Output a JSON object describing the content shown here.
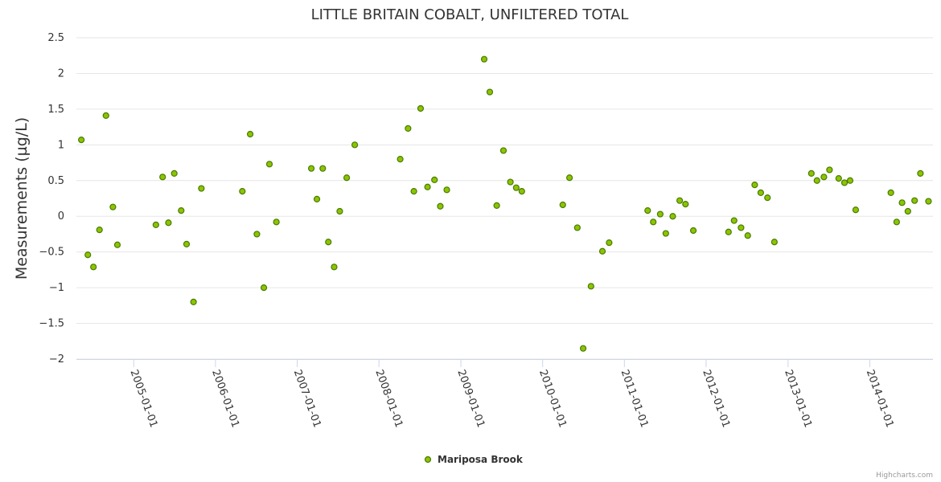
{
  "credits": "Highcharts.com",
  "chart_data": {
    "type": "scatter",
    "title": "LITTLE BRITAIN COBALT, UNFILTERED TOTAL",
    "ylabel": "Measurements (µg/L)",
    "xlabel": "",
    "ylim": [
      -2,
      2.5
    ],
    "yticks": [
      "2.5",
      "2",
      "1.5",
      "1",
      "0.5",
      "0",
      "−0.5",
      "−1",
      "−1.5",
      "−2"
    ],
    "xlim": [
      "2004-04-20",
      "2014-10-10"
    ],
    "xticks": [
      "2005-01-01",
      "2006-01-01",
      "2007-01-01",
      "2008-01-01",
      "2009-01-01",
      "2010-01-01",
      "2011-01-01",
      "2012-01-01",
      "2013-01-01",
      "2014-01-01"
    ],
    "grid": true,
    "legend_position": "bottom-center",
    "colors": {
      "marker_fill": "#8bc500",
      "marker_stroke": "#4a7a00",
      "grid": "#e6e6e6",
      "axis": "#ccd6eb"
    },
    "series": [
      {
        "name": "Mariposa Brook",
        "points": [
          {
            "x": "2004-05-12",
            "y": 1.07
          },
          {
            "x": "2004-06-10",
            "y": -0.54
          },
          {
            "x": "2004-07-05",
            "y": -0.71
          },
          {
            "x": "2004-08-01",
            "y": -0.19
          },
          {
            "x": "2004-08-30",
            "y": 1.41
          },
          {
            "x": "2004-09-30",
            "y": 0.13
          },
          {
            "x": "2004-10-20",
            "y": -0.4
          },
          {
            "x": "2005-04-10",
            "y": -0.12
          },
          {
            "x": "2005-05-10",
            "y": 0.55
          },
          {
            "x": "2005-06-05",
            "y": -0.09
          },
          {
            "x": "2005-07-01",
            "y": 0.6
          },
          {
            "x": "2005-08-01",
            "y": 0.08
          },
          {
            "x": "2005-08-25",
            "y": -0.39
          },
          {
            "x": "2005-09-25",
            "y": -1.2
          },
          {
            "x": "2005-10-30",
            "y": 0.39
          },
          {
            "x": "2006-05-01",
            "y": 0.35
          },
          {
            "x": "2006-06-05",
            "y": 1.15
          },
          {
            "x": "2006-07-05",
            "y": -0.25
          },
          {
            "x": "2006-08-05",
            "y": -1.0
          },
          {
            "x": "2006-08-30",
            "y": 0.73
          },
          {
            "x": "2006-09-30",
            "y": -0.08
          },
          {
            "x": "2007-03-05",
            "y": 0.67
          },
          {
            "x": "2007-03-30",
            "y": 0.24
          },
          {
            "x": "2007-04-25",
            "y": 0.67
          },
          {
            "x": "2007-05-20",
            "y": -0.36
          },
          {
            "x": "2007-06-15",
            "y": -0.71
          },
          {
            "x": "2007-07-10",
            "y": 0.07
          },
          {
            "x": "2007-08-10",
            "y": 0.54
          },
          {
            "x": "2007-09-15",
            "y": 1.0
          },
          {
            "x": "2008-04-05",
            "y": 0.8
          },
          {
            "x": "2008-05-10",
            "y": 1.23
          },
          {
            "x": "2008-06-05",
            "y": 0.35
          },
          {
            "x": "2008-07-05",
            "y": 1.51
          },
          {
            "x": "2008-08-05",
            "y": 0.41
          },
          {
            "x": "2008-09-05",
            "y": 0.51
          },
          {
            "x": "2008-10-01",
            "y": 0.14
          },
          {
            "x": "2008-10-30",
            "y": 0.37
          },
          {
            "x": "2009-04-15",
            "y": 2.2
          },
          {
            "x": "2009-05-10",
            "y": 1.74
          },
          {
            "x": "2009-06-10",
            "y": 0.15
          },
          {
            "x": "2009-07-10",
            "y": 0.92
          },
          {
            "x": "2009-08-10",
            "y": 0.48
          },
          {
            "x": "2009-09-05",
            "y": 0.4
          },
          {
            "x": "2009-09-30",
            "y": 0.35
          },
          {
            "x": "2010-04-01",
            "y": 0.16
          },
          {
            "x": "2010-05-01",
            "y": 0.54
          },
          {
            "x": "2010-06-05",
            "y": -0.16
          },
          {
            "x": "2010-07-01",
            "y": -1.85
          },
          {
            "x": "2010-08-05",
            "y": -0.98
          },
          {
            "x": "2010-09-25",
            "y": -0.49
          },
          {
            "x": "2010-10-25",
            "y": -0.37
          },
          {
            "x": "2011-04-15",
            "y": 0.08
          },
          {
            "x": "2011-05-10",
            "y": -0.08
          },
          {
            "x": "2011-06-10",
            "y": 0.03
          },
          {
            "x": "2011-07-05",
            "y": -0.24
          },
          {
            "x": "2011-08-05",
            "y": 0.0
          },
          {
            "x": "2011-09-05",
            "y": 0.22
          },
          {
            "x": "2011-10-01",
            "y": 0.17
          },
          {
            "x": "2011-11-05",
            "y": -0.2
          },
          {
            "x": "2012-04-10",
            "y": -0.22
          },
          {
            "x": "2012-05-05",
            "y": -0.06
          },
          {
            "x": "2012-06-05",
            "y": -0.16
          },
          {
            "x": "2012-07-05",
            "y": -0.27
          },
          {
            "x": "2012-08-05",
            "y": 0.44
          },
          {
            "x": "2012-09-01",
            "y": 0.33
          },
          {
            "x": "2012-10-01",
            "y": 0.26
          },
          {
            "x": "2012-11-01",
            "y": -0.36
          },
          {
            "x": "2013-04-15",
            "y": 0.6
          },
          {
            "x": "2013-05-10",
            "y": 0.5
          },
          {
            "x": "2013-06-10",
            "y": 0.55
          },
          {
            "x": "2013-07-05",
            "y": 0.65
          },
          {
            "x": "2013-08-15",
            "y": 0.53
          },
          {
            "x": "2013-09-10",
            "y": 0.47
          },
          {
            "x": "2013-10-05",
            "y": 0.5
          },
          {
            "x": "2013-10-30",
            "y": 0.09
          },
          {
            "x": "2014-04-05",
            "y": 0.33
          },
          {
            "x": "2014-05-01",
            "y": -0.08
          },
          {
            "x": "2014-05-25",
            "y": 0.19
          },
          {
            "x": "2014-06-20",
            "y": 0.07
          },
          {
            "x": "2014-07-20",
            "y": 0.22
          },
          {
            "x": "2014-08-15",
            "y": 0.6
          },
          {
            "x": "2014-09-20",
            "y": 0.21
          }
        ]
      }
    ]
  }
}
